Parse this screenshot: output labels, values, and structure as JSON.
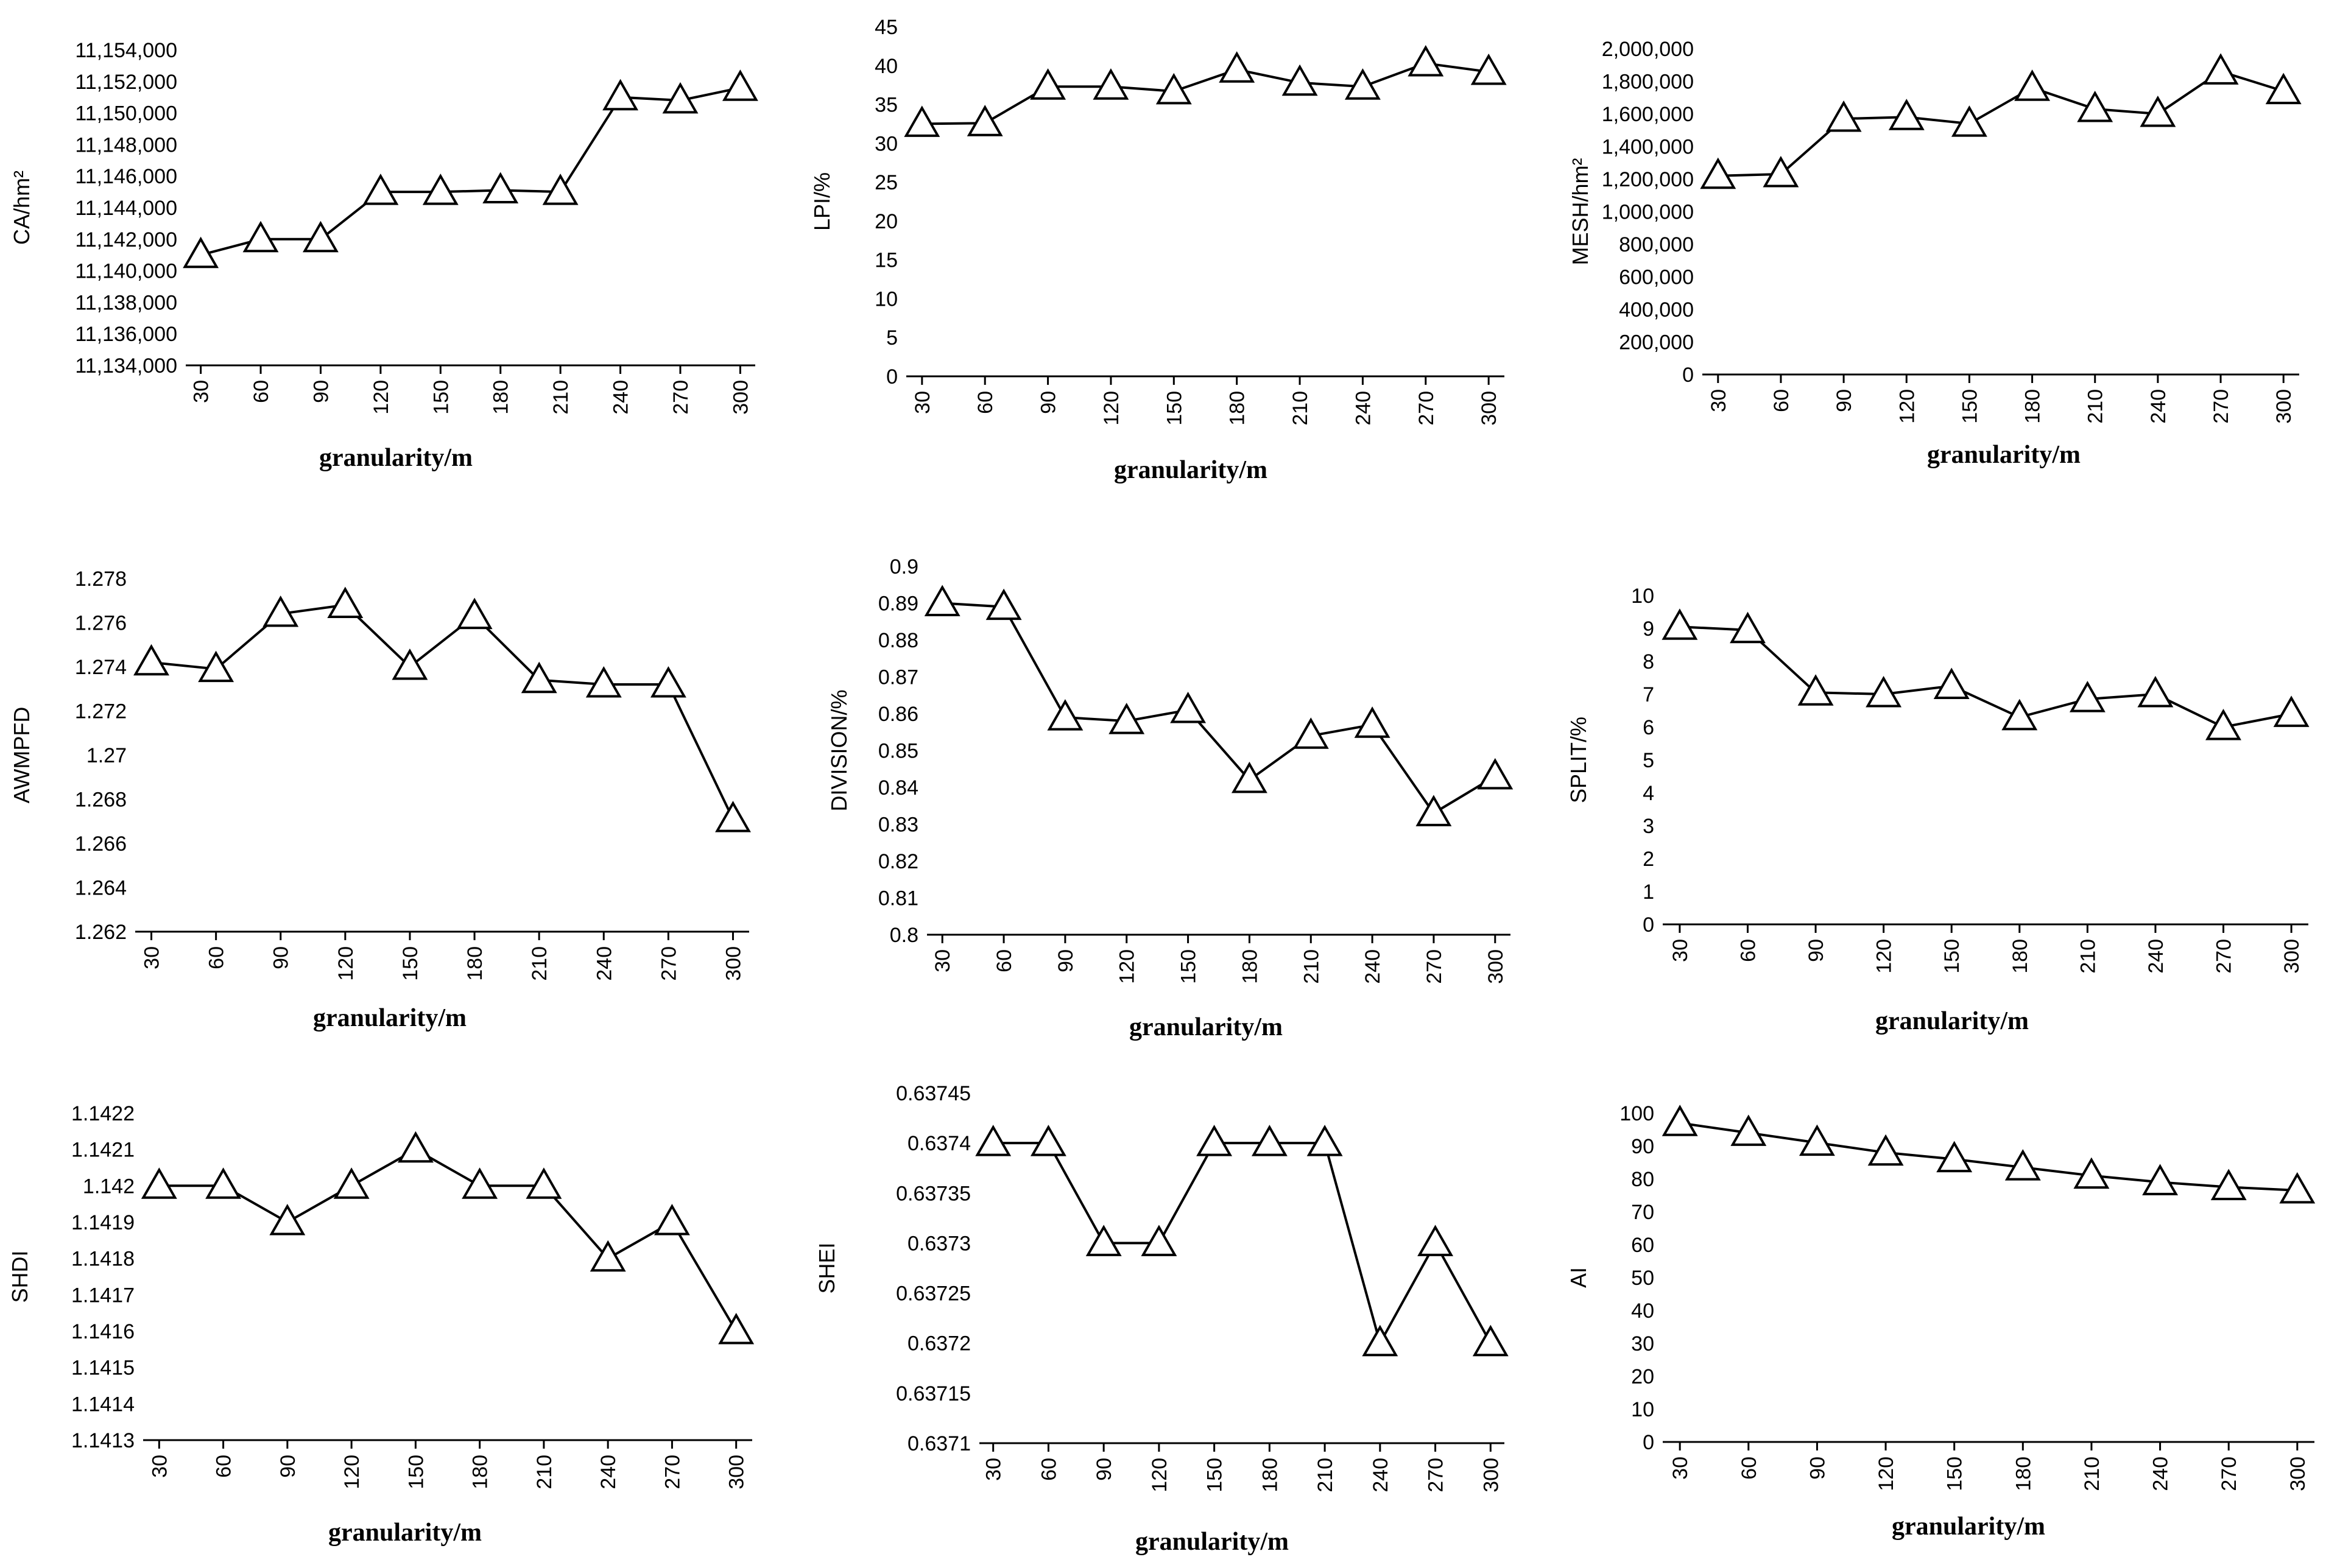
{
  "chart_data": [
    {
      "type": "line",
      "id": "ca",
      "ylabel": "CA/hm²",
      "xlabel": "granularity/m",
      "categories": [
        "30",
        "60",
        "90",
        "120",
        "150",
        "180",
        "210",
        "240",
        "270",
        "300"
      ],
      "values": [
        11141000,
        11142000,
        11142000,
        11145000,
        11145000,
        11145100,
        11145000,
        11151000,
        11150800,
        11151600
      ],
      "ylim": [
        11134000,
        11154000
      ],
      "yticks": [
        "11,134,000",
        "11,136,000",
        "11,138,000",
        "11,140,000",
        "11,142,000",
        "11,144,000",
        "11,146,000",
        "11,148,000",
        "11,150,000",
        "11,152,000",
        "11,154,000"
      ]
    },
    {
      "type": "line",
      "id": "lpi",
      "ylabel": "LPI/%",
      "xlabel": "granularity/m",
      "categories": [
        "30",
        "60",
        "90",
        "120",
        "150",
        "180",
        "210",
        "240",
        "270",
        "300"
      ],
      "values": [
        32.5,
        32.6,
        37.3,
        37.3,
        36.7,
        39.5,
        37.8,
        37.3,
        40.3,
        39.2
      ],
      "ylim": [
        0,
        45
      ],
      "yticks": [
        "0",
        "5",
        "10",
        "15",
        "20",
        "25",
        "30",
        "35",
        "40",
        "45"
      ]
    },
    {
      "type": "line",
      "id": "mesh",
      "ylabel": "MESH/hm²",
      "xlabel": "granularity/m",
      "categories": [
        "30",
        "60",
        "90",
        "120",
        "150",
        "180",
        "210",
        "240",
        "270",
        "300"
      ],
      "values": [
        1220000,
        1230000,
        1570000,
        1580000,
        1540000,
        1760000,
        1630000,
        1600000,
        1860000,
        1740000
      ],
      "ylim": [
        0,
        2000000
      ],
      "yticks": [
        "0",
        "200,000",
        "400,000",
        "600,000",
        "800,000",
        "1,000,000",
        "1,200,000",
        "1,400,000",
        "1,600,000",
        "1,800,000",
        "2,000,000"
      ]
    },
    {
      "type": "line",
      "id": "awmpfd",
      "ylabel": "AWMPFD",
      "xlabel": "granularity/m",
      "categories": [
        "30",
        "60",
        "90",
        "120",
        "150",
        "180",
        "210",
        "240",
        "270",
        "300"
      ],
      "values": [
        1.2742,
        1.2739,
        1.2764,
        1.2768,
        1.274,
        1.2763,
        1.2734,
        1.2732,
        1.2732,
        1.2671
      ],
      "ylim": [
        1.262,
        1.278
      ],
      "yticks": [
        "1.262",
        "1.264",
        "1.266",
        "1.268",
        "1.27",
        "1.272",
        "1.274",
        "1.276",
        "1.278"
      ]
    },
    {
      "type": "line",
      "id": "division",
      "ylabel": "DIVISION/%",
      "xlabel": "granularity/m",
      "categories": [
        "30",
        "60",
        "90",
        "120",
        "150",
        "180",
        "210",
        "240",
        "270",
        "300"
      ],
      "values": [
        0.89,
        0.889,
        0.859,
        0.858,
        0.861,
        0.842,
        0.854,
        0.857,
        0.833,
        0.843
      ],
      "ylim": [
        0.8,
        0.9
      ],
      "yticks": [
        "0.8",
        "0.81",
        "0.82",
        "0.83",
        "0.84",
        "0.85",
        "0.86",
        "0.87",
        "0.88",
        "0.89",
        "0.9"
      ]
    },
    {
      "type": "line",
      "id": "split",
      "ylabel": "SPLIT/%",
      "xlabel": "granularity/m",
      "categories": [
        "30",
        "60",
        "90",
        "120",
        "150",
        "180",
        "210",
        "240",
        "270",
        "300"
      ],
      "values": [
        9.05,
        8.95,
        7.05,
        7.0,
        7.25,
        6.3,
        6.85,
        7.0,
        6.0,
        6.4
      ],
      "ylim": [
        0,
        10
      ],
      "yticks": [
        "0",
        "1",
        "2",
        "3",
        "4",
        "5",
        "6",
        "7",
        "8",
        "9",
        "10"
      ]
    },
    {
      "type": "line",
      "id": "shdi",
      "ylabel": "SHDI",
      "xlabel": "granularity/m",
      "categories": [
        "30",
        "60",
        "90",
        "120",
        "150",
        "180",
        "210",
        "240",
        "270",
        "300"
      ],
      "values": [
        1.142,
        1.142,
        1.1419,
        1.142,
        1.1421,
        1.142,
        1.142,
        1.1418,
        1.1419,
        1.1416
      ],
      "ylim": [
        1.1413,
        1.1422
      ],
      "yticks": [
        "1.1413",
        "1.1414",
        "1.1415",
        "1.1416",
        "1.1417",
        "1.1418",
        "1.1419",
        "1.142",
        "1.1421",
        "1.1422"
      ]
    },
    {
      "type": "line",
      "id": "shei",
      "ylabel": "SHEI",
      "xlabel": "granularity/m",
      "categories": [
        "30",
        "60",
        "90",
        "120",
        "150",
        "180",
        "210",
        "240",
        "270",
        "300"
      ],
      "values": [
        0.6374,
        0.6374,
        0.6373,
        0.6373,
        0.6374,
        0.6374,
        0.6374,
        0.6372,
        0.6373,
        0.6372
      ],
      "ylim": [
        0.6371,
        0.63745
      ],
      "yticks": [
        "0.6371",
        "0.63715",
        "0.6372",
        "0.63725",
        "0.6373",
        "0.63735",
        "0.6374",
        "0.63745"
      ]
    },
    {
      "type": "line",
      "id": "ai",
      "ylabel": "AI",
      "xlabel": "granularity/m",
      "categories": [
        "30",
        "60",
        "90",
        "120",
        "150",
        "180",
        "210",
        "240",
        "270",
        "300"
      ],
      "values": [
        97,
        94,
        91,
        88,
        86,
        83.5,
        81,
        79,
        77.5,
        76.5
      ],
      "ylim": [
        0,
        100
      ],
      "yticks": [
        "0",
        "10",
        "20",
        "30",
        "40",
        "50",
        "60",
        "70",
        "80",
        "90",
        "100"
      ]
    }
  ]
}
